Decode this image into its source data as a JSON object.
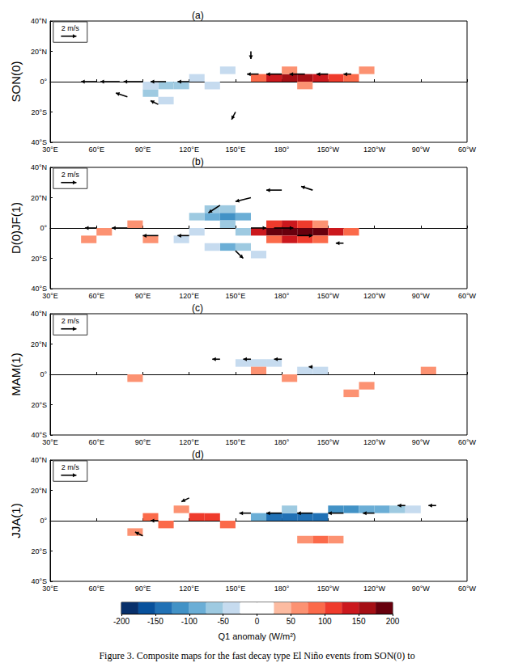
{
  "chart_data": [
    {
      "type": "heatmap",
      "title": "(a)",
      "ylabel": "SON(0)",
      "xlim": [
        30,
        300
      ],
      "xticks": [
        {
          "value": 30,
          "label": "30°E"
        },
        {
          "value": 60,
          "label": "60°E"
        },
        {
          "value": 90,
          "label": "90°E"
        },
        {
          "value": 120,
          "label": "120°E"
        },
        {
          "value": 150,
          "label": "150°E"
        },
        {
          "value": 180,
          "label": "180°"
        },
        {
          "value": 210,
          "label": "150°W"
        },
        {
          "value": 240,
          "label": "120°W"
        },
        {
          "value": 270,
          "label": "90°W"
        },
        {
          "value": 300,
          "label": "60°W"
        }
      ],
      "ylim": [
        -40,
        40
      ],
      "yticks": [
        {
          "value": -40,
          "label": "40°S"
        },
        {
          "value": -20,
          "label": "20°S"
        },
        {
          "value": 0,
          "label": "0°"
        },
        {
          "value": 20,
          "label": "20°N"
        },
        {
          "value": 40,
          "label": "40°N"
        }
      ],
      "cell_size": [
        10,
        5
      ],
      "cells": [
        [
          165,
          2.5,
          75
        ],
        [
          175,
          2.5,
          125
        ],
        [
          185,
          2.5,
          150
        ],
        [
          195,
          2.5,
          150
        ],
        [
          205,
          2.5,
          125
        ],
        [
          215,
          2.5,
          100
        ],
        [
          225,
          2.5,
          75
        ],
        [
          235,
          7.5,
          50
        ],
        [
          185,
          7.5,
          50
        ],
        [
          195,
          -2.5,
          50
        ],
        [
          95,
          -7.5,
          -75
        ],
        [
          105,
          -2.5,
          -75
        ],
        [
          115,
          -2.5,
          -75
        ],
        [
          125,
          2.5,
          -50
        ],
        [
          135,
          -2.5,
          -50
        ],
        [
          145,
          7.5,
          -50
        ],
        [
          105,
          -12.5,
          -50
        ],
        [
          95,
          -2.5,
          -50
        ]
      ],
      "vectors": [
        [
          60,
          0,
          -2,
          0
        ],
        [
          75,
          0,
          -2.5,
          0
        ],
        [
          90,
          0,
          -2.5,
          0
        ],
        [
          105,
          0,
          -2,
          0
        ],
        [
          120,
          0,
          -1.5,
          0
        ],
        [
          80,
          -10,
          -1.5,
          0.5
        ],
        [
          100,
          -15,
          -1,
          0.5
        ],
        [
          165,
          5,
          -1.5,
          0
        ],
        [
          180,
          5,
          -2,
          0
        ],
        [
          195,
          5,
          -2,
          0
        ],
        [
          210,
          5,
          -1.5,
          0
        ],
        [
          225,
          5,
          -1,
          0
        ],
        [
          150,
          -20,
          -0.5,
          -1
        ],
        [
          160,
          20,
          0,
          -1
        ]
      ],
      "reference_vector": {
        "value": 2,
        "label": "2 m/s"
      }
    },
    {
      "type": "heatmap",
      "title": "(b)",
      "ylabel": "D(0)JF(1)",
      "xlim": [
        30,
        300
      ],
      "xticks": [
        {
          "value": 30,
          "label": "30°E"
        },
        {
          "value": 60,
          "label": "60°E"
        },
        {
          "value": 90,
          "label": "90°E"
        },
        {
          "value": 120,
          "label": "120°E"
        },
        {
          "value": 150,
          "label": "150°E"
        },
        {
          "value": 180,
          "label": "180°"
        },
        {
          "value": 210,
          "label": "150°W"
        },
        {
          "value": 240,
          "label": "120°W"
        },
        {
          "value": 270,
          "label": "90°W"
        },
        {
          "value": 300,
          "label": "60°W"
        }
      ],
      "ylim": [
        -40,
        40
      ],
      "yticks": [
        {
          "value": -40,
          "label": "40°S"
        },
        {
          "value": -20,
          "label": "20°S"
        },
        {
          "value": 0,
          "label": "0°"
        },
        {
          "value": 20,
          "label": "20°N"
        },
        {
          "value": 40,
          "label": "40°N"
        }
      ],
      "cell_size": [
        10,
        5
      ],
      "cells": [
        [
          165,
          -2.5,
          125
        ],
        [
          175,
          -2.5,
          175
        ],
        [
          185,
          -2.5,
          200
        ],
        [
          195,
          -2.5,
          200
        ],
        [
          205,
          -2.5,
          175
        ],
        [
          215,
          -2.5,
          125
        ],
        [
          225,
          -2.5,
          75
        ],
        [
          175,
          2.5,
          100
        ],
        [
          185,
          2.5,
          125
        ],
        [
          195,
          2.5,
          100
        ],
        [
          185,
          -7.5,
          125
        ],
        [
          195,
          -7.5,
          100
        ],
        [
          205,
          -7.5,
          75
        ],
        [
          175,
          -7.5,
          75
        ],
        [
          205,
          2.5,
          50
        ],
        [
          55,
          -7.5,
          50
        ],
        [
          65,
          -2.5,
          50
        ],
        [
          95,
          -7.5,
          50
        ],
        [
          85,
          2.5,
          50
        ],
        [
          125,
          7.5,
          -75
        ],
        [
          135,
          7.5,
          -100
        ],
        [
          145,
          7.5,
          -125
        ],
        [
          155,
          7.5,
          -100
        ],
        [
          135,
          12.5,
          -75
        ],
        [
          145,
          12.5,
          -75
        ],
        [
          145,
          2.5,
          -75
        ],
        [
          155,
          -2.5,
          -75
        ],
        [
          145,
          -12.5,
          -100
        ],
        [
          155,
          -12.5,
          -75
        ],
        [
          135,
          -12.5,
          -50
        ],
        [
          165,
          -17.5,
          -50
        ],
        [
          115,
          -7.5,
          -50
        ],
        [
          125,
          -2.5,
          -50
        ]
      ],
      "vectors": [
        [
          60,
          0,
          -1.5,
          0
        ],
        [
          80,
          0,
          -2,
          0
        ],
        [
          100,
          -5,
          -2,
          0
        ],
        [
          120,
          -5,
          -1.5,
          0
        ],
        [
          140,
          15,
          -1.5,
          -1
        ],
        [
          160,
          20,
          -2,
          -0.5
        ],
        [
          180,
          25,
          -2,
          0
        ],
        [
          200,
          25,
          -1.5,
          0.5
        ],
        [
          160,
          0,
          2,
          0
        ],
        [
          175,
          0,
          2.5,
          0
        ],
        [
          190,
          -5,
          2,
          0
        ],
        [
          150,
          -15,
          1,
          -1
        ],
        [
          220,
          -10,
          -1,
          0
        ]
      ],
      "reference_vector": {
        "value": 2,
        "label": "2 m/s"
      }
    },
    {
      "type": "heatmap",
      "title": "(c)",
      "ylabel": "MAM(1)",
      "xlim": [
        30,
        300
      ],
      "xticks": [
        {
          "value": 30,
          "label": "30°E"
        },
        {
          "value": 60,
          "label": "60°E"
        },
        {
          "value": 90,
          "label": "90°E"
        },
        {
          "value": 120,
          "label": "120°E"
        },
        {
          "value": 150,
          "label": "150°E"
        },
        {
          "value": 180,
          "label": "180°"
        },
        {
          "value": 210,
          "label": "150°W"
        },
        {
          "value": 240,
          "label": "120°W"
        },
        {
          "value": 270,
          "label": "90°W"
        },
        {
          "value": 300,
          "label": "60°W"
        }
      ],
      "ylim": [
        -40,
        40
      ],
      "yticks": [
        {
          "value": -40,
          "label": "40°S"
        },
        {
          "value": -20,
          "label": "20°S"
        },
        {
          "value": 0,
          "label": "0°"
        },
        {
          "value": 20,
          "label": "20°N"
        },
        {
          "value": 40,
          "label": "40°N"
        }
      ],
      "cell_size": [
        10,
        5
      ],
      "cells": [
        [
          155,
          7.5,
          -50
        ],
        [
          165,
          7.5,
          -50
        ],
        [
          175,
          7.5,
          -50
        ],
        [
          195,
          2.5,
          -50
        ],
        [
          205,
          2.5,
          -50
        ],
        [
          165,
          2.5,
          50
        ],
        [
          185,
          -2.5,
          50
        ],
        [
          225,
          -12.5,
          50
        ],
        [
          85,
          -2.5,
          50
        ],
        [
          275,
          2.5,
          50
        ],
        [
          235,
          -7.5,
          50
        ]
      ],
      "vectors": [
        [
          140,
          10,
          -1,
          0
        ],
        [
          160,
          10,
          -1,
          0
        ],
        [
          180,
          10,
          -1,
          0
        ],
        [
          200,
          5,
          -0.5,
          0
        ]
      ],
      "reference_vector": {
        "value": 2,
        "label": "2 m/s"
      }
    },
    {
      "type": "heatmap",
      "title": "(d)",
      "ylabel": "JJA(1)",
      "xlim": [
        30,
        300
      ],
      "xticks": [
        {
          "value": 30,
          "label": "30°E"
        },
        {
          "value": 60,
          "label": "60°E"
        },
        {
          "value": 90,
          "label": "90°E"
        },
        {
          "value": 120,
          "label": "120°E"
        },
        {
          "value": 150,
          "label": "150°E"
        },
        {
          "value": 180,
          "label": "180°"
        },
        {
          "value": 210,
          "label": "150°W"
        },
        {
          "value": 240,
          "label": "120°W"
        },
        {
          "value": 270,
          "label": "90°W"
        },
        {
          "value": 300,
          "label": "60°W"
        }
      ],
      "ylim": [
        -40,
        40
      ],
      "yticks": [
        {
          "value": -40,
          "label": "40°S"
        },
        {
          "value": -20,
          "label": "20°S"
        },
        {
          "value": 0,
          "label": "0°"
        },
        {
          "value": 20,
          "label": "20°N"
        },
        {
          "value": 40,
          "label": "40°N"
        }
      ],
      "cell_size": [
        10,
        5
      ],
      "cells": [
        [
          165,
          2.5,
          -100
        ],
        [
          175,
          2.5,
          -150
        ],
        [
          185,
          2.5,
          -150
        ],
        [
          195,
          2.5,
          -150
        ],
        [
          205,
          2.5,
          -150
        ],
        [
          215,
          7.5,
          -125
        ],
        [
          225,
          7.5,
          -125
        ],
        [
          235,
          7.5,
          -100
        ],
        [
          245,
          7.5,
          -100
        ],
        [
          255,
          7.5,
          -75
        ],
        [
          265,
          7.5,
          -50
        ],
        [
          185,
          7.5,
          -75
        ],
        [
          95,
          2.5,
          75
        ],
        [
          105,
          -2.5,
          75
        ],
        [
          125,
          2.5,
          100
        ],
        [
          135,
          2.5,
          100
        ],
        [
          145,
          -2.5,
          75
        ],
        [
          115,
          7.5,
          50
        ],
        [
          85,
          -7.5,
          50
        ],
        [
          205,
          -12.5,
          75
        ],
        [
          215,
          -12.5,
          50
        ],
        [
          195,
          -12.5,
          50
        ]
      ],
      "vectors": [
        [
          160,
          5,
          -1.5,
          0
        ],
        [
          180,
          5,
          -2,
          0
        ],
        [
          200,
          5,
          -2,
          0
        ],
        [
          220,
          5,
          -2,
          0
        ],
        [
          240,
          5,
          -1.5,
          0
        ],
        [
          260,
          10,
          -1,
          0
        ],
        [
          100,
          0,
          -1,
          0
        ],
        [
          120,
          15,
          -1,
          -0.5
        ],
        [
          90,
          -10,
          -1,
          0.5
        ],
        [
          280,
          10,
          -1,
          0
        ]
      ],
      "reference_vector": {
        "value": 2,
        "label": "2 m/s"
      }
    }
  ],
  "colorbar": {
    "label": "Q1 anomaly (W/m²)",
    "ticks": [
      -200,
      -150,
      -100,
      -50,
      0,
      50,
      100,
      150,
      200
    ],
    "bins": [
      -200,
      -175,
      -150,
      -125,
      -100,
      -75,
      -50,
      -25,
      0,
      25,
      50,
      75,
      100,
      125,
      150,
      175,
      200
    ],
    "colors": [
      "#08306b",
      "#08519c",
      "#2171b5",
      "#4292c6",
      "#6baed6",
      "#9ecae1",
      "#c6dbef",
      "#ffffff",
      "#ffffff",
      "#fcbba1",
      "#fc9272",
      "#fb6a4a",
      "#ef3b2c",
      "#cb181d",
      "#a50f15",
      "#67000d"
    ]
  },
  "caption": "Figure 3. Composite maps for the fast decay type El Niño events from SON(0) to"
}
